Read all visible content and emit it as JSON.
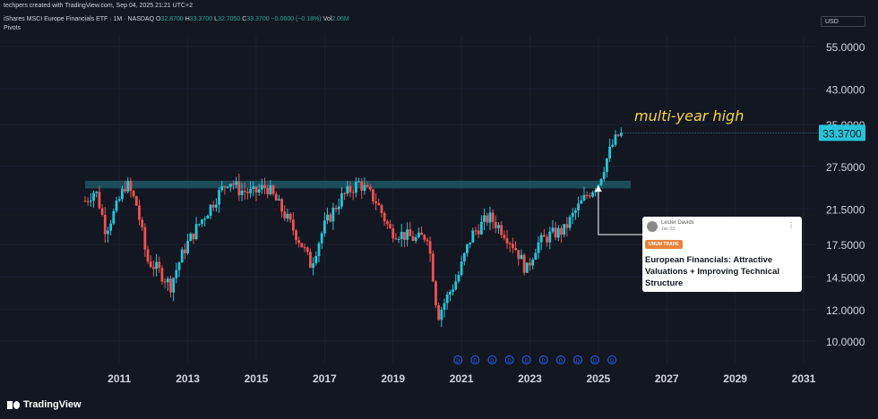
{
  "header": {
    "credit": "techpers created with TradingView.com, Sep 04, 2025 21:21 UTC+2",
    "symbol": "iShares MSCI Europe Financials ETF · 1M · NASDAQ",
    "open_label": "O",
    "open": "32.8700",
    "high_label": "H",
    "high": "33.3700",
    "low_label": "L",
    "low": "32.7050",
    "close_label": "C",
    "close": "33.3700",
    "change": "−0.0600 (−0.18%)",
    "vol_label": "Vol",
    "vol": "2.06M",
    "indicator": "Pivots",
    "currency": "USD"
  },
  "annotation": {
    "note": "multi-year high"
  },
  "idea_card": {
    "author": "Lester Davids",
    "date": "Jan 23",
    "tag": "UNUM TRADE",
    "headline": "European Financials: Attractive Valuations + Improving Technical Structure"
  },
  "footer": {
    "brand": "TradingView"
  },
  "colors": {
    "background": "#131722",
    "up": "#26c6da",
    "down": "#ef5350",
    "zone": "#1f5f6b",
    "price_tag": "#26c6da",
    "note": "#f5d547",
    "dividend": "#2962ff"
  },
  "chart_data": {
    "type": "candlestick",
    "scale": "log",
    "price_axis_ticks": [
      "55.0000",
      "43.0000",
      "35.0000",
      "27.5000",
      "21.5000",
      "17.5000",
      "14.5000",
      "12.0000",
      "10.0000"
    ],
    "price_axis_values": [
      55,
      43,
      35,
      27.5,
      21.5,
      17.5,
      14.5,
      12,
      10
    ],
    "time_axis_ticks": [
      "2011",
      "2013",
      "2015",
      "2017",
      "2019",
      "2021",
      "2023",
      "2025",
      "2027",
      "2029",
      "2031"
    ],
    "time_axis_years": [
      2011,
      2013,
      2015,
      2017,
      2019,
      2021,
      2023,
      2025,
      2027,
      2029,
      2031
    ],
    "last_price": "33.3700",
    "last_price_value": 33.37,
    "resistance_zone": [
      24.2,
      25.3
    ],
    "dividend_label": "D",
    "dividend_years": [
      2020.9,
      2021.4,
      2021.9,
      2022.4,
      2022.9,
      2023.4,
      2023.9,
      2024.4,
      2024.9,
      2025.4
    ],
    "series": [
      {
        "year": 2010.0,
        "close": 22.5
      },
      {
        "year": 2010.3,
        "close": 24.0
      },
      {
        "year": 2010.6,
        "close": 19.0
      },
      {
        "year": 2010.9,
        "close": 21.5
      },
      {
        "year": 2011.2,
        "close": 25.0
      },
      {
        "year": 2011.5,
        "close": 22.0
      },
      {
        "year": 2011.8,
        "close": 16.0
      },
      {
        "year": 2012.1,
        "close": 15.2
      },
      {
        "year": 2012.5,
        "close": 13.8
      },
      {
        "year": 2012.9,
        "close": 17.0
      },
      {
        "year": 2013.3,
        "close": 19.5
      },
      {
        "year": 2013.7,
        "close": 22.0
      },
      {
        "year": 2014.2,
        "close": 25.5
      },
      {
        "year": 2014.5,
        "close": 24.0
      },
      {
        "year": 2014.9,
        "close": 23.5
      },
      {
        "year": 2015.3,
        "close": 24.5
      },
      {
        "year": 2015.8,
        "close": 21.0
      },
      {
        "year": 2016.4,
        "close": 17.0
      },
      {
        "year": 2016.6,
        "close": 15.5
      },
      {
        "year": 2017.0,
        "close": 19.5
      },
      {
        "year": 2017.5,
        "close": 23.0
      },
      {
        "year": 2018.0,
        "close": 25.0
      },
      {
        "year": 2018.5,
        "close": 22.5
      },
      {
        "year": 2018.9,
        "close": 19.0
      },
      {
        "year": 2019.3,
        "close": 18.5
      },
      {
        "year": 2019.7,
        "close": 18.0
      },
      {
        "year": 2020.0,
        "close": 18.5
      },
      {
        "year": 2020.3,
        "close": 11.5
      },
      {
        "year": 2020.6,
        "close": 13.0
      },
      {
        "year": 2020.9,
        "close": 14.5
      },
      {
        "year": 2021.3,
        "close": 18.5
      },
      {
        "year": 2021.8,
        "close": 20.5
      },
      {
        "year": 2022.2,
        "close": 19.0
      },
      {
        "year": 2022.6,
        "close": 17.0
      },
      {
        "year": 2022.9,
        "close": 15.0
      },
      {
        "year": 2023.2,
        "close": 17.5
      },
      {
        "year": 2023.6,
        "close": 18.5
      },
      {
        "year": 2024.0,
        "close": 19.0
      },
      {
        "year": 2024.3,
        "close": 21.0
      },
      {
        "year": 2024.7,
        "close": 23.5
      },
      {
        "year": 2025.0,
        "close": 25.0
      },
      {
        "year": 2025.2,
        "close": 28.0
      },
      {
        "year": 2025.4,
        "close": 31.0
      },
      {
        "year": 2025.6,
        "close": 33.0
      },
      {
        "year": 2025.7,
        "close": 33.37
      }
    ]
  }
}
